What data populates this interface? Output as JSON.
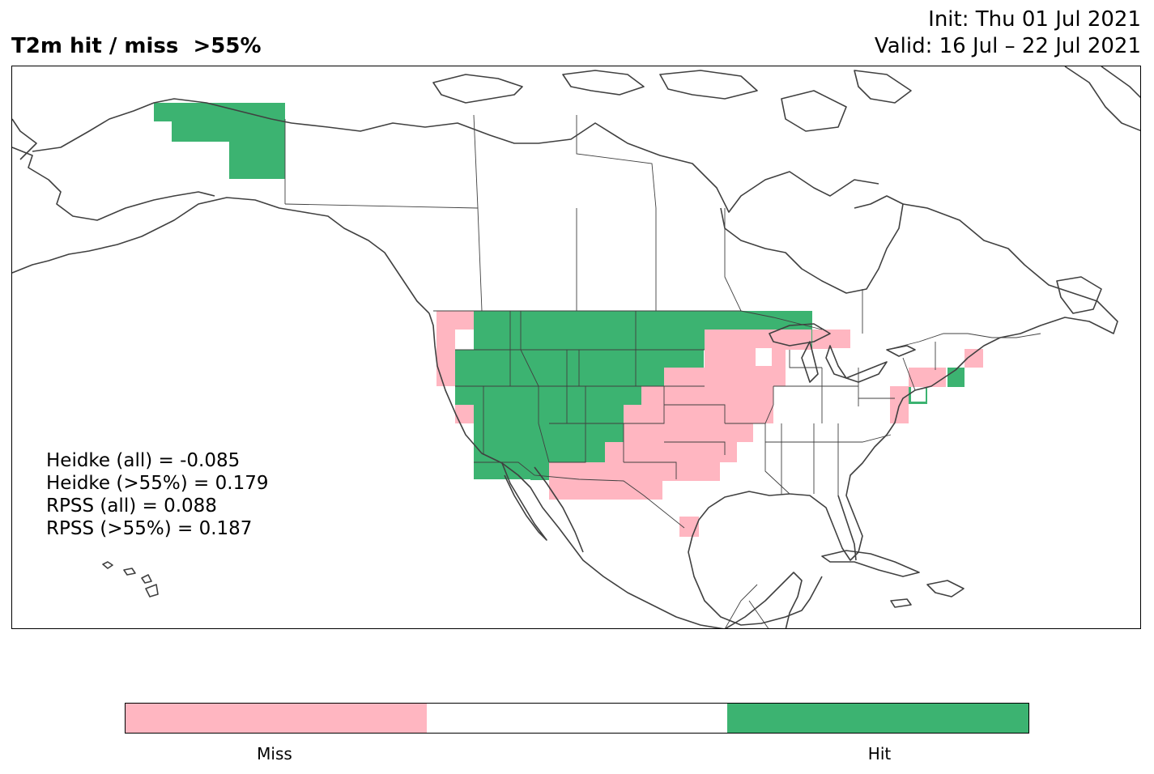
{
  "header": {
    "title": "T2m hit / miss  >55%",
    "init": "Init: Thu 01 Jul 2021",
    "valid": "Valid: 16 Jul – 22 Jul 2021"
  },
  "scores": {
    "heidke_all": "Heidke (all) = -0.085",
    "heidke_55": "Heidke (>55%) = 0.179",
    "rpss_all": "RPSS (all) = 0.088",
    "rpss_55": "RPSS (>55%) = 0.187"
  },
  "colors": {
    "miss": "#ffb6c1",
    "hit": "#3cb371",
    "neutral": "#ffffff",
    "coast": "#404040"
  },
  "colorbar": {
    "miss_label": "Miss",
    "hit_label": "Hit"
  },
  "map_features": [
    "Alaska",
    "Canada",
    "Contiguous United States",
    "Mexico",
    "Gulf of Mexico",
    "Hawaii",
    "Cuba",
    "Greenland (part)"
  ]
}
